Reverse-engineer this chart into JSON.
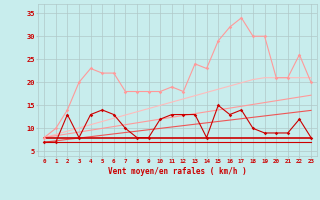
{
  "x": [
    0,
    1,
    2,
    3,
    4,
    5,
    6,
    7,
    8,
    9,
    10,
    11,
    12,
    13,
    14,
    15,
    16,
    17,
    18,
    19,
    20,
    21,
    22,
    23
  ],
  "line_rafale_light": [
    8,
    10,
    14,
    20,
    23,
    22,
    22,
    18,
    18,
    18,
    18,
    19,
    18,
    24,
    23,
    29,
    32,
    34,
    30,
    30,
    21,
    21,
    26,
    20
  ],
  "line_rafale_dark": [
    7,
    7,
    13,
    8,
    13,
    14,
    13,
    10,
    8,
    8,
    12,
    13,
    13,
    13,
    8,
    15,
    13,
    14,
    10,
    9,
    9,
    9,
    12,
    8
  ],
  "line_trend_top": [
    8.0,
    8.7,
    9.4,
    10.1,
    10.8,
    11.5,
    12.2,
    12.9,
    13.6,
    14.3,
    15.0,
    15.7,
    16.4,
    17.1,
    17.8,
    18.5,
    19.2,
    19.9,
    20.6,
    21.0,
    21.0,
    21.0,
    21.0,
    21.0
  ],
  "line_trend_mid": [
    8.0,
    8.4,
    8.8,
    9.2,
    9.6,
    10.0,
    10.4,
    10.8,
    11.2,
    11.6,
    12.0,
    12.4,
    12.8,
    13.2,
    13.6,
    14.0,
    14.4,
    14.8,
    15.2,
    15.6,
    16.0,
    16.4,
    16.8,
    17.2
  ],
  "line_trend_low": [
    7.0,
    7.3,
    7.6,
    7.9,
    8.2,
    8.5,
    8.8,
    9.1,
    9.4,
    9.7,
    10.0,
    10.3,
    10.6,
    10.9,
    11.2,
    11.5,
    11.8,
    12.1,
    12.4,
    12.7,
    13.0,
    13.3,
    13.6,
    13.9
  ],
  "line_flat_top": [
    8,
    8,
    8,
    8,
    8,
    8,
    8,
    8,
    8,
    8,
    8,
    8,
    8,
    8,
    8,
    8,
    8,
    8,
    8,
    8,
    8,
    8,
    8,
    8
  ],
  "line_flat_bottom": [
    7,
    7,
    7,
    7,
    7,
    7,
    7,
    7,
    7,
    7,
    7,
    7,
    7,
    7,
    7,
    7,
    7,
    7,
    7,
    7,
    7,
    7,
    7,
    7
  ],
  "bg_color": "#c8eded",
  "grid_color": "#b0c8c8",
  "xlabel": "Vent moyen/en rafales ( km/h )",
  "ylim": [
    4,
    37
  ],
  "xlim": [
    -0.5,
    23.5
  ],
  "yticks": [
    5,
    10,
    15,
    20,
    25,
    30,
    35
  ],
  "xticks": [
    0,
    1,
    2,
    3,
    4,
    5,
    6,
    7,
    8,
    9,
    10,
    11,
    12,
    13,
    14,
    15,
    16,
    17,
    18,
    19,
    20,
    21,
    22,
    23
  ],
  "color_dark_red": "#cc0000",
  "color_medium_red": "#ee5555",
  "color_light_red": "#ff9999",
  "color_xlight_red": "#ffbbbb"
}
